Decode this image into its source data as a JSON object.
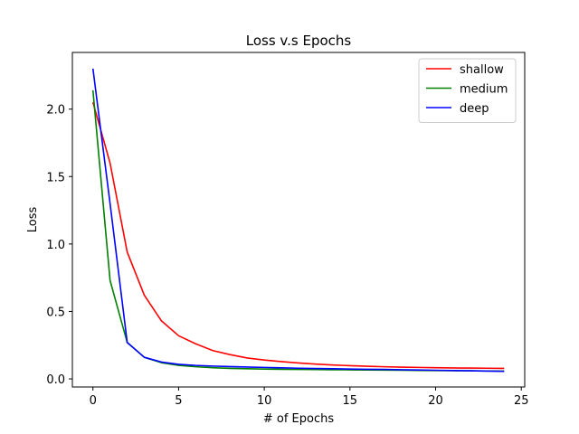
{
  "chart_data": {
    "type": "line",
    "title": "Loss v.s Epochs",
    "xlabel": "# of Epochs",
    "ylabel": "Loss",
    "xlim": [
      -1.2,
      25.2
    ],
    "ylim": [
      -0.06,
      2.42
    ],
    "xticks": [
      0,
      5,
      10,
      15,
      20,
      25
    ],
    "xtick_labels": [
      "0",
      "5",
      "10",
      "15",
      "20",
      "25"
    ],
    "yticks": [
      0.0,
      0.5,
      1.0,
      1.5,
      2.0
    ],
    "ytick_labels": [
      "0.0",
      "0.5",
      "1.0",
      "1.5",
      "2.0"
    ],
    "grid": false,
    "legend_position": "top-right",
    "x": [
      0,
      1,
      2,
      3,
      4,
      5,
      6,
      7,
      8,
      9,
      10,
      11,
      12,
      13,
      14,
      15,
      16,
      17,
      18,
      19,
      20,
      21,
      22,
      23,
      24
    ],
    "series": [
      {
        "name": "shallow",
        "color": "#ff0000",
        "values": [
          2.05,
          1.6,
          0.94,
          0.62,
          0.43,
          0.32,
          0.26,
          0.21,
          0.18,
          0.155,
          0.14,
          0.128,
          0.118,
          0.11,
          0.103,
          0.098,
          0.094,
          0.09,
          0.087,
          0.085,
          0.083,
          0.081,
          0.08,
          0.079,
          0.078
        ]
      },
      {
        "name": "medium",
        "color": "#008000",
        "values": [
          2.14,
          0.73,
          0.27,
          0.16,
          0.12,
          0.1,
          0.09,
          0.083,
          0.078,
          0.075,
          0.073,
          0.071,
          0.07,
          0.069,
          0.068,
          0.067,
          0.066,
          0.065,
          0.064,
          0.063,
          0.062,
          0.061,
          0.06,
          0.059,
          0.058
        ]
      },
      {
        "name": "deep",
        "color": "#0000ff",
        "values": [
          2.3,
          1.3,
          0.27,
          0.16,
          0.125,
          0.108,
          0.1,
          0.095,
          0.091,
          0.088,
          0.085,
          0.082,
          0.079,
          0.077,
          0.075,
          0.073,
          0.071,
          0.07,
          0.068,
          0.066,
          0.064,
          0.062,
          0.06,
          0.058,
          0.056
        ]
      }
    ]
  }
}
